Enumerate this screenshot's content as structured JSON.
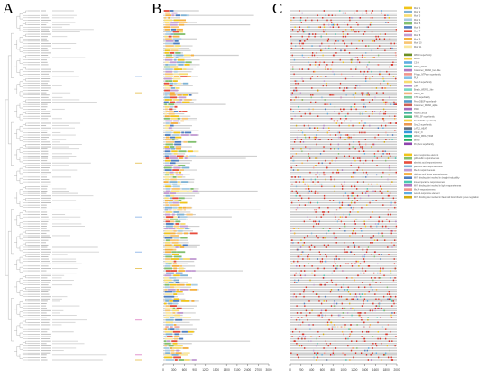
{
  "panels": {
    "a": "A",
    "b": "B",
    "c": "C"
  },
  "colors": {
    "tree": "#9a9a9a",
    "axis": "#444444",
    "backbone_b": "#cfcfcf",
    "backbone_c": "#c8c8c8",
    "highlight_red": "#d9342b"
  },
  "chart_data": [
    {
      "type": "dendrogram",
      "panel": "A",
      "leaf_count": 150,
      "title": "",
      "xlabel": "",
      "ylabel": ""
    },
    {
      "type": "bar",
      "panel": "B",
      "title": "",
      "xlabel": "",
      "ylabel": "",
      "xlim": [
        0,
        3000
      ],
      "x_ticks": [
        "0",
        "300",
        "600",
        "900",
        "1200",
        "1500",
        "1800",
        "2100",
        "2400",
        "2700",
        "3000"
      ],
      "motif_legend": [
        {
          "name": "Motif 1",
          "color": "#f0c419"
        },
        {
          "name": "Motif 2",
          "color": "#7fb3d5"
        },
        {
          "name": "Motif 3",
          "color": "#f7dc6f"
        },
        {
          "name": "Motif 4",
          "color": "#a9cce3"
        },
        {
          "name": "Motif 5",
          "color": "#82c06e"
        },
        {
          "name": "Motif 6",
          "color": "#4f7fc1"
        },
        {
          "name": "Motif 7",
          "color": "#e74c3c"
        },
        {
          "name": "Motif 8",
          "color": "#c39bd3"
        },
        {
          "name": "Motif 9",
          "color": "#f5b041"
        },
        {
          "name": "Motif 10",
          "color": "#f8c471"
        },
        {
          "name": "Motif 11",
          "color": "#f9e79f"
        }
      ],
      "domain_legend": [
        {
          "name": "WD40 superfamily",
          "color": "#6b8e23"
        },
        {
          "name": "WD40",
          "color": "#f4d03f"
        },
        {
          "name": "CS-H",
          "color": "#5dade2"
        },
        {
          "name": "THO2_WD40",
          "color": "#48c9b0"
        },
        {
          "name": "Coatomer_WDAD_beta-like",
          "color": "#af7ac5"
        },
        {
          "name": "P-loop_NTPase superfamily",
          "color": "#f1948a"
        },
        {
          "name": "PLN",
          "color": "#85c1e9"
        },
        {
          "name": "Sec13 superfamily",
          "color": "#f7dc6f"
        },
        {
          "name": "LisH",
          "color": "#bb8fce"
        },
        {
          "name": "Beach_WDR81_like",
          "color": "#76d7c4"
        },
        {
          "name": "WD40_TF",
          "color": "#f0b27a"
        },
        {
          "name": "CTD superfamily",
          "color": "#7dcea0"
        },
        {
          "name": "PreprOBSP superfamily",
          "color": "#5499c7"
        },
        {
          "name": "Coatomer_WDAD_alpha",
          "color": "#cd6155"
        },
        {
          "name": "DWD",
          "color": "#a569bd"
        },
        {
          "name": "Nucleo_rpt1B",
          "color": "#45b39d"
        },
        {
          "name": "RRM_SF superfamily",
          "color": "#52be80"
        },
        {
          "name": "FtsZ2/FTSI superfamily",
          "color": "#f4d03f"
        },
        {
          "name": "Sec12 superfamily",
          "color": "#eb984e"
        },
        {
          "name": "LAT12_HEAT",
          "color": "#5d6d7e"
        },
        {
          "name": "Utp12_N",
          "color": "#3498db"
        },
        {
          "name": "WD40_FBXL_TF1B",
          "color": "#1abc9c"
        },
        {
          "name": "Brodd",
          "color": "#27ae60"
        },
        {
          "name": "Pro_box superfamily",
          "color": "#8e44ad"
        }
      ],
      "element_legend": [
        {
          "name": "auxin responsive element",
          "color": "#f0c419"
        },
        {
          "name": "gibberellin responsiveness",
          "color": "#82c06e"
        },
        {
          "name": "abscisic acid responsiveness",
          "color": "#e74c3c"
        },
        {
          "name": "jasmonic acid responsiveness",
          "color": "#7fb3d5"
        },
        {
          "name": "MeJA responsiveness",
          "color": "#c39bd3"
        },
        {
          "name": "defense and stress responsiveness",
          "color": "#f5b041"
        },
        {
          "name": "MYB binding site involved in drought-inducibility",
          "color": "#4f7fc1"
        },
        {
          "name": "low-temperature responsiveness",
          "color": "#48c9b0"
        },
        {
          "name": "MYB binding site involved in light responsiveness",
          "color": "#af7ac5"
        },
        {
          "name": "MeJA-responsiveness",
          "color": "#f1948a"
        },
        {
          "name": "wound-responsive element",
          "color": "#5dade2"
        },
        {
          "name": "MYB binding site involved in flavonoid biosynthetic genes regulation",
          "color": "#d4ac0d"
        }
      ]
    },
    {
      "type": "bar",
      "panel": "C",
      "title": "",
      "xlabel": "",
      "ylabel": "",
      "xlim": [
        0,
        2000
      ],
      "x_ticks": [
        "0",
        "200",
        "400",
        "600",
        "800",
        "1000",
        "1200",
        "1400",
        "1600",
        "1800",
        "2000"
      ]
    }
  ]
}
